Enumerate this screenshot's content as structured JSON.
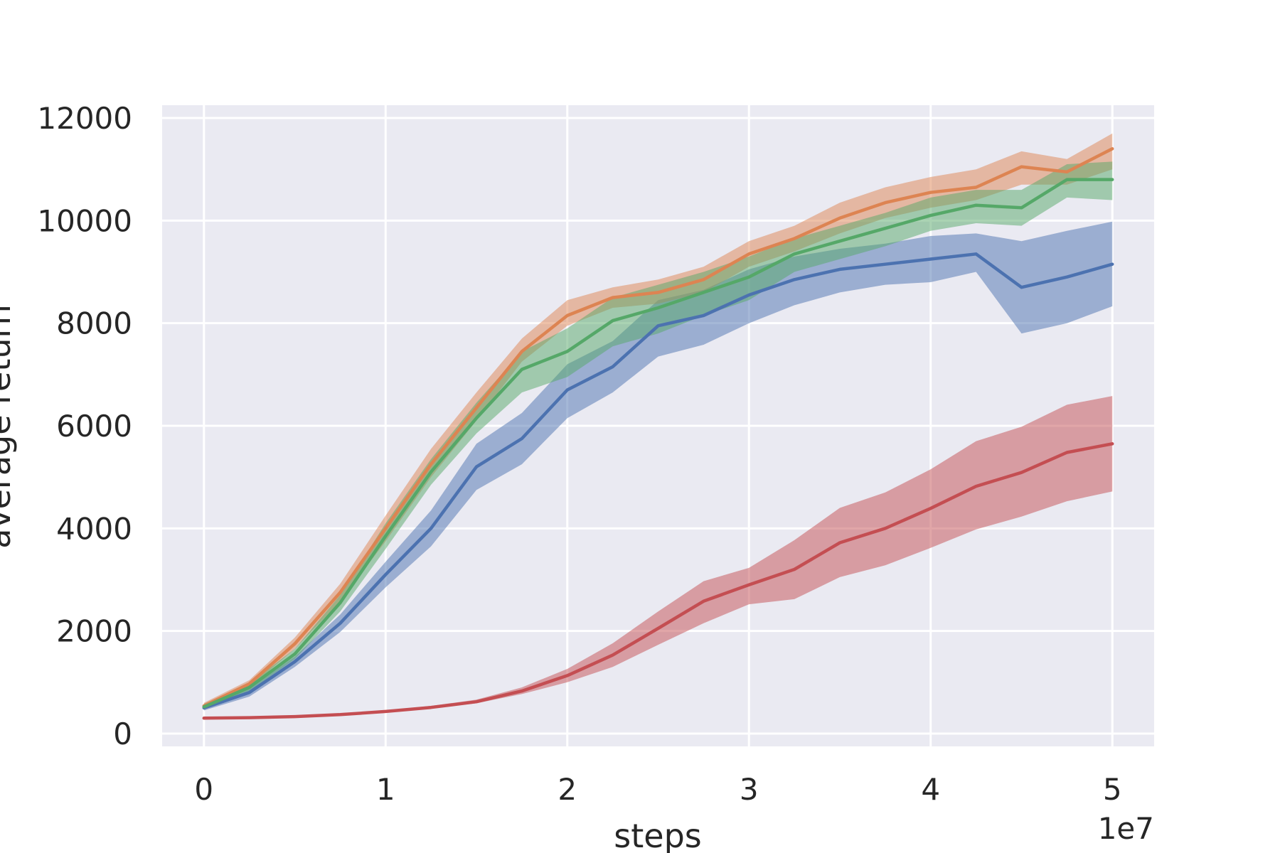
{
  "chart_data": {
    "type": "line",
    "xlabel": "steps",
    "ylabel": "average return",
    "x_offset_label": "1e7",
    "xlim": [
      -0.23,
      5.23
    ],
    "ylim": [
      -250,
      12250
    ],
    "x_ticks": [
      0,
      1,
      2,
      3,
      4,
      5
    ],
    "x_tick_labels": [
      "0",
      "1",
      "2",
      "3",
      "4",
      "5"
    ],
    "y_ticks": [
      0,
      2000,
      4000,
      6000,
      8000,
      10000,
      12000
    ],
    "y_tick_labels": [
      "0",
      "2000",
      "4000",
      "6000",
      "8000",
      "10000",
      "12000"
    ],
    "grid": true,
    "x": [
      0,
      0.25,
      0.5,
      0.75,
      1.0,
      1.25,
      1.5,
      1.75,
      2.0,
      2.25,
      2.5,
      2.75,
      3.0,
      3.25,
      3.5,
      3.75,
      4.0,
      4.25,
      4.5,
      4.75,
      5.0
    ],
    "series": [
      {
        "color": "#4c72b0",
        "values": [
          500,
          800,
          1400,
          2150,
          3100,
          4000,
          5200,
          5750,
          6700,
          7150,
          7950,
          8150,
          8550,
          8850,
          9050,
          9150,
          9250,
          9350,
          8700,
          8900,
          9150
        ],
        "lower": [
          450,
          720,
          1300,
          1980,
          2850,
          3650,
          4750,
          5250,
          6150,
          6650,
          7350,
          7580,
          8000,
          8350,
          8600,
          8750,
          8800,
          9000,
          7800,
          8000,
          8330
        ],
        "upper": [
          560,
          880,
          1500,
          2320,
          3350,
          4350,
          5650,
          6250,
          7200,
          7650,
          8450,
          8650,
          9050,
          9300,
          9450,
          9550,
          9700,
          9750,
          9600,
          9800,
          9980
        ]
      },
      {
        "color": "#dd8452",
        "values": [
          540,
          970,
          1750,
          2750,
          4000,
          5250,
          6350,
          7450,
          8150,
          8500,
          8600,
          8850,
          9350,
          9650,
          10050,
          10350,
          10550,
          10650,
          11050,
          10950,
          11400
        ],
        "lower": [
          480,
          900,
          1650,
          2580,
          3750,
          5000,
          6100,
          7250,
          7950,
          8300,
          8380,
          8600,
          9100,
          9400,
          9750,
          10050,
          10250,
          10400,
          10700,
          10700,
          11000
        ],
        "upper": [
          600,
          1040,
          1870,
          2920,
          4250,
          5550,
          6650,
          7700,
          8450,
          8700,
          8850,
          9100,
          9600,
          9900,
          10350,
          10650,
          10850,
          11000,
          11350,
          11200,
          11700
        ]
      },
      {
        "color": "#55a868",
        "values": [
          520,
          900,
          1550,
          2550,
          3850,
          5100,
          6150,
          7100,
          7450,
          8050,
          8300,
          8600,
          8900,
          9350,
          9600,
          9850,
          10100,
          10300,
          10250,
          10800,
          10800
        ],
        "lower": [
          470,
          830,
          1450,
          2380,
          3600,
          4850,
          5850,
          6650,
          6950,
          7550,
          7800,
          8150,
          8450,
          9000,
          9250,
          9500,
          9800,
          9950,
          9900,
          10450,
          10400
        ],
        "upper": [
          580,
          980,
          1650,
          2700,
          4100,
          5350,
          6450,
          7450,
          7900,
          8500,
          8750,
          9000,
          9300,
          9650,
          9900,
          10150,
          10450,
          10600,
          10600,
          11100,
          11150
        ]
      },
      {
        "color": "#c44e52",
        "values": [
          300,
          310,
          330,
          370,
          430,
          510,
          620,
          830,
          1130,
          1530,
          2050,
          2580,
          2900,
          3200,
          3720,
          4000,
          4390,
          4820,
          5090,
          5480,
          5650
        ],
        "lower": [
          290,
          300,
          320,
          355,
          410,
          490,
          590,
          770,
          1000,
          1300,
          1730,
          2150,
          2520,
          2620,
          3050,
          3280,
          3620,
          3980,
          4230,
          4530,
          4720
        ],
        "upper": [
          310,
          320,
          345,
          390,
          450,
          540,
          660,
          900,
          1260,
          1760,
          2380,
          2970,
          3230,
          3770,
          4400,
          4700,
          5150,
          5700,
          5980,
          6410,
          6580
        ]
      }
    ]
  }
}
